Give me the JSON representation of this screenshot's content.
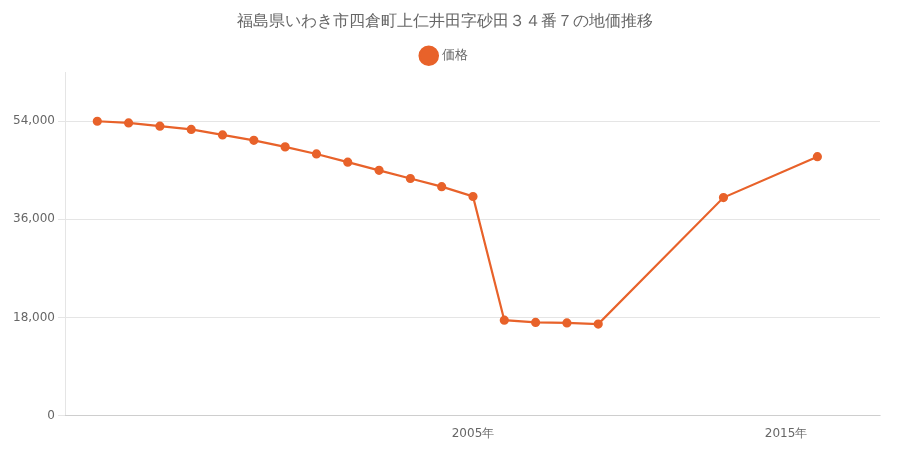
{
  "chart_data": {
    "type": "line",
    "title": "福島県いわき市四倉町上仁井田字砂田３４番７の地価推移",
    "x": [
      1993,
      1994,
      1995,
      1996,
      1997,
      1998,
      1999,
      2000,
      2001,
      2002,
      2003,
      2004,
      2005,
      2006,
      2007,
      2008,
      2009,
      2013,
      2016
    ],
    "series": [
      {
        "name": "価格",
        "color": "#e8622a",
        "marker": "circle",
        "values": [
          54000,
          53700,
          53100,
          52500,
          51500,
          50500,
          49300,
          48000,
          46500,
          45000,
          43500,
          42000,
          40200,
          17500,
          17100,
          17000,
          16800,
          40000,
          47500
        ]
      }
    ],
    "xlim": [
      1992,
      2018
    ],
    "xticks": [
      {
        "value": 2005,
        "label": "2005年"
      },
      {
        "value": 2015,
        "label": "2015年"
      }
    ],
    "ylim": [
      0,
      63000
    ],
    "yticks": [
      0,
      {
        "value": 18000,
        "label": "18,000"
      },
      {
        "value": 36000,
        "label": "36,000"
      },
      {
        "value": 54000,
        "label": "54,000"
      }
    ],
    "grid": "y",
    "legend": "top"
  }
}
